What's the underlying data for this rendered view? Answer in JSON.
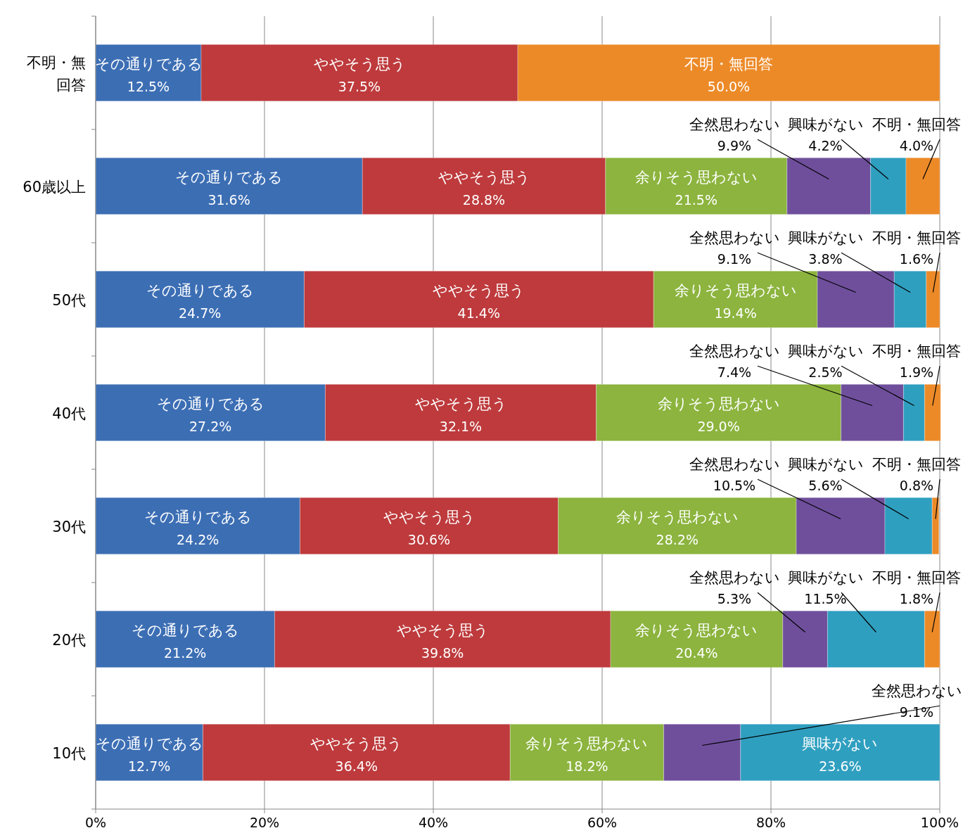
{
  "chart_data": {
    "type": "bar",
    "orientation": "horizontal",
    "stacked": true,
    "categories": [
      "不明・無回答",
      "60歳以上",
      "50代",
      "40代",
      "30代",
      "20代",
      "10代"
    ],
    "series": [
      {
        "name": "その通りである",
        "color": "#3c6eb4",
        "values": [
          12.5,
          31.6,
          24.7,
          27.2,
          24.2,
          21.2,
          12.7
        ],
        "value_labels": [
          "12.5%",
          "31.6%",
          "24.7%",
          "27.2%",
          "24.2%",
          "21.2%",
          "12.7%"
        ]
      },
      {
        "name": "ややそう思う",
        "color": "#be3a3c",
        "values": [
          37.5,
          28.8,
          41.4,
          32.1,
          30.6,
          39.8,
          36.4
        ],
        "value_labels": [
          "37.5%",
          "28.8%",
          "41.4%",
          "32.1%",
          "30.6%",
          "39.8%",
          "36.4%"
        ]
      },
      {
        "name": "余りそう思わない",
        "color": "#8cb43e",
        "values": [
          null,
          21.5,
          19.4,
          29.0,
          28.2,
          20.4,
          18.2
        ],
        "value_labels": [
          null,
          "21.5%",
          "19.4%",
          "29.0%",
          "28.2%",
          "20.4%",
          "18.2%"
        ]
      },
      {
        "name": "全然思わない",
        "color": "#6f4f9c",
        "values": [
          null,
          9.9,
          9.1,
          7.4,
          10.5,
          5.3,
          9.1
        ],
        "value_labels": [
          null,
          "9.9%",
          "9.1%",
          "7.4%",
          "10.5%",
          "5.3%",
          "9.1%"
        ]
      },
      {
        "name": "興味がない",
        "color": "#2f9fc0",
        "values": [
          null,
          4.2,
          3.8,
          2.5,
          5.6,
          11.5,
          23.6
        ],
        "value_labels": [
          null,
          "4.2%",
          "3.8%",
          "2.5%",
          "5.6%",
          "11.5%",
          "23.6%"
        ]
      },
      {
        "name": "不明・無回答",
        "color": "#ec8a28",
        "values": [
          50.0,
          4.0,
          1.6,
          1.9,
          0.8,
          1.8,
          null
        ],
        "value_labels": [
          "50.0%",
          "4.0%",
          "1.6%",
          "1.9%",
          "0.8%",
          "1.8%",
          null
        ]
      }
    ],
    "xlim": [
      0,
      100
    ],
    "xticks": [
      {
        "value": 0,
        "label": "0%"
      },
      {
        "value": 20,
        "label": "20%"
      },
      {
        "value": 40,
        "label": "40%"
      },
      {
        "value": 60,
        "label": "60%"
      },
      {
        "value": 80,
        "label": "80%"
      },
      {
        "value": 100,
        "label": "100%"
      }
    ],
    "grid": "x"
  }
}
